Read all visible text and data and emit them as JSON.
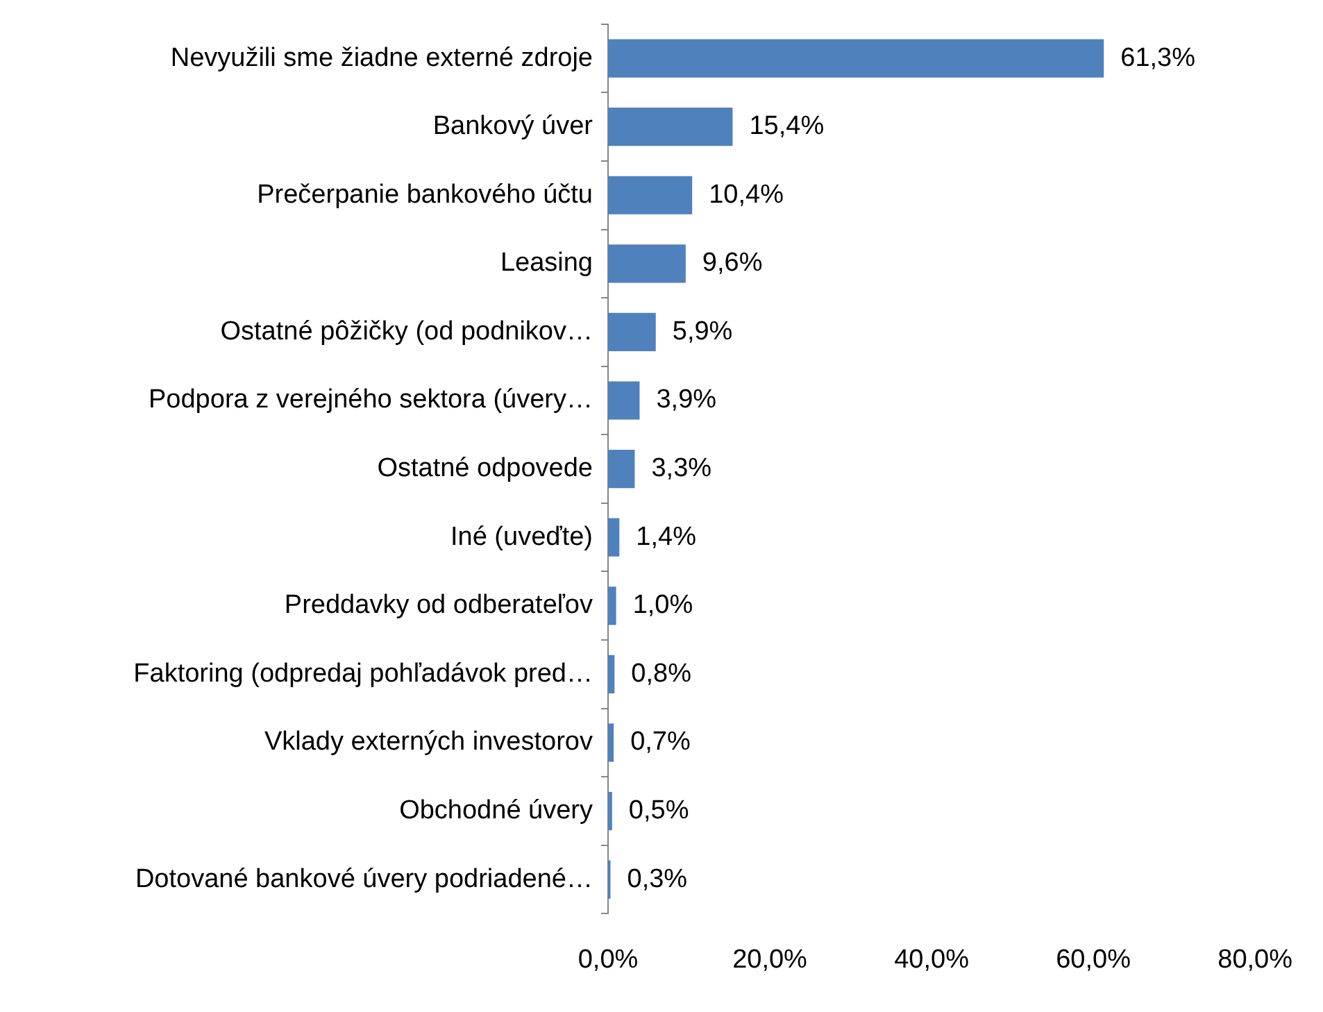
{
  "chart_data": {
    "type": "bar",
    "orientation": "horizontal",
    "categories": [
      "Nevyužili sme žiadne externé zdroje",
      "Bankový úver",
      "Prečerpanie bankového účtu",
      "Leasing",
      "Ostatné pôžičky (od podnikov…",
      "Podpora z verejného sektora (úvery…",
      "Ostatné odpovede",
      "Iné (uveďte)",
      "Preddavky od odberateľov",
      "Faktoring (odpredaj pohľadávok pred…",
      "Vklady externých investorov",
      "Obchodné úvery",
      "Dotované bankové úvery podriadené…"
    ],
    "values": [
      61.3,
      15.4,
      10.4,
      9.6,
      5.9,
      3.9,
      3.3,
      1.4,
      1.0,
      0.8,
      0.7,
      0.5,
      0.3
    ],
    "value_labels": [
      "61,3%",
      "15,4%",
      "10,4%",
      "9,6%",
      "5,9%",
      "3,9%",
      "3,3%",
      "1,4%",
      "1,0%",
      "0,8%",
      "0,7%",
      "0,5%",
      "0,3%"
    ],
    "color": "#4f81bd",
    "xlim": [
      0,
      80
    ],
    "xticks": [
      {
        "value": 0,
        "label": "0,0%"
      },
      {
        "value": 20,
        "label": "20,0%"
      },
      {
        "value": 40,
        "label": "40,0%"
      },
      {
        "value": 60,
        "label": "60,0%"
      },
      {
        "value": 80,
        "label": "80,0%"
      }
    ],
    "grid": false,
    "legend": false
  }
}
